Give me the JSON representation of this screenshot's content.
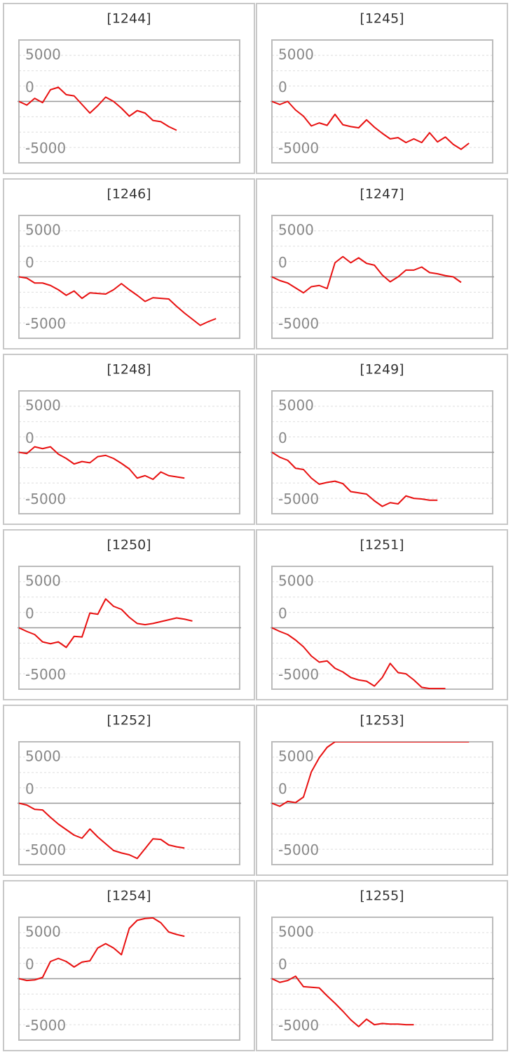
{
  "chart_data": [
    {
      "type": "line",
      "title": "[1244]",
      "color": "#e81010",
      "xlim": [
        0,
        28
      ],
      "ylim": [
        -10000,
        10000
      ],
      "yticks": [
        -5000,
        0,
        5000
      ],
      "grid_yticks": [
        -7500,
        -5000,
        -2500,
        2500,
        5000,
        7500
      ],
      "zero_line": true,
      "values": [
        0,
        -600,
        500,
        -200,
        1900,
        2300,
        1100,
        900,
        -500,
        -1900,
        -700,
        700,
        0,
        -1100,
        -2400,
        -1500,
        -1900,
        -3100,
        -3300,
        -4100,
        -4700
      ]
    },
    {
      "type": "line",
      "title": "[1245]",
      "color": "#e81010",
      "xlim": [
        0,
        28
      ],
      "ylim": [
        -10000,
        10000
      ],
      "yticks": [
        -5000,
        0,
        5000
      ],
      "grid_yticks": [
        -7500,
        -5000,
        -2500,
        2500,
        5000,
        7500
      ],
      "zero_line": true,
      "values": [
        0,
        -500,
        0,
        -1400,
        -2400,
        -4000,
        -3500,
        -3900,
        -2100,
        -3800,
        -4100,
        -4300,
        -3000,
        -4200,
        -5200,
        -6100,
        -5900,
        -6700,
        -6100,
        -6700,
        -5100,
        -6600,
        -5800,
        -7000,
        -7800,
        -6800
      ]
    },
    {
      "type": "line",
      "title": "[1246]",
      "color": "#e81010",
      "xlim": [
        0,
        28
      ],
      "ylim": [
        -10000,
        10000
      ],
      "yticks": [
        -5000,
        0,
        5000
      ],
      "grid_yticks": [
        -7500,
        -5000,
        -2500,
        2500,
        5000,
        7500
      ],
      "zero_line": true,
      "values": [
        0,
        -200,
        -1000,
        -1000,
        -1400,
        -2100,
        -3000,
        -2300,
        -3500,
        -2600,
        -2700,
        -2800,
        -2100,
        -1100,
        -2100,
        -3000,
        -4000,
        -3400,
        -3500,
        -3600,
        -4800,
        -5900,
        -6900,
        -7900,
        -7300,
        -6800
      ]
    },
    {
      "type": "line",
      "title": "[1247]",
      "color": "#e81010",
      "xlim": [
        0,
        28
      ],
      "ylim": [
        -10000,
        10000
      ],
      "yticks": [
        -5000,
        0,
        5000
      ],
      "grid_yticks": [
        -7500,
        -5000,
        -2500,
        2500,
        5000,
        7500
      ],
      "zero_line": true,
      "values": [
        0,
        -600,
        -1000,
        -1800,
        -2600,
        -1600,
        -1400,
        -1900,
        2300,
        3300,
        2300,
        3100,
        2200,
        1900,
        300,
        -800,
        0,
        1100,
        1100,
        1600,
        700,
        500,
        200,
        0,
        -900
      ]
    },
    {
      "type": "line",
      "title": "[1248]",
      "color": "#e81010",
      "xlim": [
        0,
        28
      ],
      "ylim": [
        -10000,
        10000
      ],
      "yticks": [
        -5000,
        0,
        5000
      ],
      "grid_yticks": [
        -7500,
        -5000,
        -2500,
        2500,
        5000,
        7500
      ],
      "zero_line": true,
      "values": [
        0,
        -200,
        900,
        600,
        900,
        -300,
        -1000,
        -1900,
        -1500,
        -1700,
        -700,
        -500,
        -1000,
        -1800,
        -2700,
        -4200,
        -3800,
        -4400,
        -3200,
        -3800,
        -4000,
        -4200
      ]
    },
    {
      "type": "line",
      "title": "[1249]",
      "color": "#e81010",
      "xlim": [
        0,
        28
      ],
      "ylim": [
        -10000,
        10000
      ],
      "yticks": [
        -5000,
        0,
        5000
      ],
      "grid_yticks": [
        -7500,
        -5000,
        -2500,
        2500,
        5000,
        7500
      ],
      "zero_line": true,
      "values": [
        0,
        -800,
        -1300,
        -2600,
        -2800,
        -4200,
        -5200,
        -4900,
        -4700,
        -5100,
        -6400,
        -6600,
        -6800,
        -7900,
        -8800,
        -8200,
        -8400,
        -7100,
        -7500,
        -7600,
        -7800,
        -7800
      ]
    },
    {
      "type": "line",
      "title": "[1250]",
      "color": "#e81010",
      "xlim": [
        0,
        28
      ],
      "ylim": [
        -10000,
        10000
      ],
      "yticks": [
        -5000,
        0,
        5000
      ],
      "grid_yticks": [
        -7500,
        -5000,
        -2500,
        2500,
        5000,
        7500
      ],
      "zero_line": true,
      "values": [
        0,
        -600,
        -1100,
        -2300,
        -2600,
        -2300,
        -3200,
        -1400,
        -1500,
        2400,
        2200,
        4700,
        3500,
        3000,
        1700,
        700,
        500,
        700,
        1000,
        1300,
        1600,
        1400,
        1100
      ]
    },
    {
      "type": "line",
      "title": "[1251]",
      "color": "#e81010",
      "xlim": [
        0,
        28
      ],
      "ylim": [
        -10000,
        10000
      ],
      "yticks": [
        -5000,
        0,
        5000
      ],
      "grid_yticks": [
        -7500,
        -5000,
        -2500,
        2500,
        5000,
        7500
      ],
      "zero_line": true,
      "values": [
        0,
        -600,
        -1100,
        -2000,
        -3100,
        -4600,
        -5600,
        -5400,
        -6600,
        -7200,
        -8100,
        -8500,
        -8700,
        -9500,
        -8100,
        -5800,
        -7300,
        -7500,
        -8500,
        -9700,
        -9900,
        -9900,
        -9900
      ]
    },
    {
      "type": "line",
      "title": "[1252]",
      "color": "#e81010",
      "xlim": [
        0,
        28
      ],
      "ylim": [
        -10000,
        10000
      ],
      "yticks": [
        -5000,
        0,
        5000
      ],
      "grid_yticks": [
        -7500,
        -5000,
        -2500,
        2500,
        5000,
        7500
      ],
      "zero_line": true,
      "values": [
        0,
        -300,
        -1000,
        -1100,
        -2300,
        -3400,
        -4300,
        -5200,
        -5700,
        -4200,
        -5500,
        -6600,
        -7700,
        -8100,
        -8400,
        -9000,
        -7400,
        -5800,
        -5900,
        -6800,
        -7100,
        -7300
      ]
    },
    {
      "type": "line",
      "title": "[1253]",
      "color": "#e81010",
      "xlim": [
        0,
        28
      ],
      "ylim": [
        -10000,
        10000
      ],
      "yticks": [
        -5000,
        0,
        5000
      ],
      "grid_yticks": [
        -7500,
        -5000,
        -2500,
        2500,
        5000,
        7500
      ],
      "zero_line": true,
      "values": [
        0,
        -500,
        300,
        100,
        1000,
        5100,
        7400,
        9100,
        10000,
        10000,
        10000,
        10000,
        10000,
        10000,
        10000,
        10000,
        10000,
        10000,
        10000,
        10000,
        10000,
        10000,
        10000,
        10000,
        10000,
        10000
      ]
    },
    {
      "type": "line",
      "title": "[1254]",
      "color": "#e81010",
      "xlim": [
        0,
        28
      ],
      "ylim": [
        -10000,
        10000
      ],
      "yticks": [
        -5000,
        0,
        5000
      ],
      "grid_yticks": [
        -7500,
        -5000,
        -2500,
        2500,
        5000,
        7500
      ],
      "zero_line": true,
      "values": [
        0,
        -300,
        -200,
        200,
        2800,
        3300,
        2800,
        1900,
        2700,
        2900,
        5000,
        5700,
        5000,
        3900,
        8200,
        9500,
        9800,
        9900,
        9100,
        7600,
        7200,
        6900
      ]
    },
    {
      "type": "line",
      "title": "[1255]",
      "color": "#e81010",
      "xlim": [
        0,
        28
      ],
      "ylim": [
        -10000,
        10000
      ],
      "yticks": [
        -5000,
        0,
        5000
      ],
      "grid_yticks": [
        -7500,
        -5000,
        -2500,
        2500,
        5000,
        7500
      ],
      "zero_line": true,
      "values": [
        0,
        -600,
        -300,
        400,
        -1300,
        -1400,
        -1500,
        -2800,
        -4000,
        -5300,
        -6700,
        -7800,
        -6600,
        -7500,
        -7300,
        -7400,
        -7400,
        -7500,
        -7500
      ]
    }
  ]
}
